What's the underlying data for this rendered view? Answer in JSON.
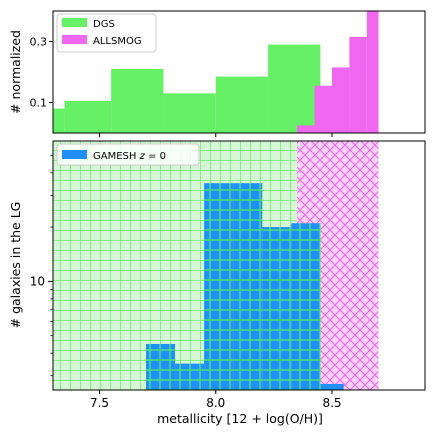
{
  "chart_data": [
    {
      "type": "histogram",
      "ylabel": "# normalized",
      "yticks": [
        0.1,
        0.3
      ],
      "ylim": [
        0.0,
        0.4
      ],
      "xlim": [
        7.3,
        8.9
      ],
      "legend": "top-left",
      "series": [
        {
          "name": "DGS",
          "color": "#66f066",
          "edges": [
            7.3,
            7.35,
            7.55,
            7.775,
            8.0,
            8.225,
            8.45
          ],
          "values": [
            0.08,
            0.105,
            0.21,
            0.13,
            0.185,
            0.29
          ]
        },
        {
          "name": "ALLSMOG",
          "color": "#f067f0",
          "edges": [
            8.35,
            8.425,
            8.5,
            8.575,
            8.65,
            8.7
          ],
          "values": [
            0.025,
            0.155,
            0.215,
            0.315,
            0.4
          ]
        }
      ]
    },
    {
      "type": "histogram",
      "xlabel": "metallicity [12 + log(O/H)]",
      "ylabel": "# galaxies in the LG",
      "yscale": "log",
      "ylim": [
        2.5,
        60
      ],
      "yticks": [
        10
      ],
      "ytick_labels": [
        "10"
      ],
      "xlim": [
        7.3,
        8.9
      ],
      "xticks": [
        7.5,
        8.0,
        8.5
      ],
      "xtick_labels": [
        "7.5",
        "8.0",
        "8.5"
      ],
      "legend": "top-left",
      "series": [
        {
          "name": "GAMESH z = 0",
          "legend_text": "GAMESH ",
          "legend_italic": "z",
          "legend_suffix": " = 0",
          "color": "#1f8fff",
          "edges": [
            7.7,
            7.825,
            7.95,
            8.075,
            8.2,
            8.325,
            8.45,
            8.55
          ],
          "values": [
            4.5,
            3.5,
            35,
            35,
            20,
            21,
            2.7
          ]
        }
      ],
      "hatched_background": [
        {
          "color": "#66f066",
          "from": 7.3,
          "to": 8.45,
          "pattern": "grid"
        },
        {
          "color": "#f067f0",
          "from": 8.35,
          "to": 8.7,
          "pattern": "crosshatch"
        }
      ]
    }
  ]
}
